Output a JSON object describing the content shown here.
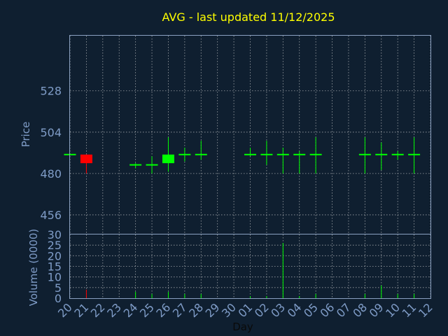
{
  "chart_data": {
    "type": "candlestick",
    "title": "AVG - last updated 11/12/2025",
    "xlabel": "Day",
    "ylabel_price": "Price",
    "ylabel_volume": "Volume (0000)",
    "categories": [
      "20",
      "21",
      "22",
      "23",
      "24",
      "25",
      "26",
      "27",
      "28",
      "29",
      "30",
      "01",
      "02",
      "03",
      "04",
      "05",
      "06",
      "07",
      "08",
      "09",
      "10",
      "11",
      "12"
    ],
    "price_yticks": [
      456,
      480,
      504,
      528
    ],
    "price_ylim": [
      445,
      560
    ],
    "volume_yticks": [
      0,
      5,
      10,
      15,
      20,
      25,
      30
    ],
    "volume_ylim": [
      0,
      30
    ],
    "colors": {
      "up": "#00ff00",
      "down": "#ff0000",
      "background": "#0f1f30",
      "title": "#ffff00",
      "axis": "#7f9cc7"
    },
    "candles": [
      {
        "day": "20",
        "open": 491,
        "high": 491,
        "low": 491,
        "close": 491,
        "volume": 0
      },
      {
        "day": "21",
        "open": 491,
        "high": 491,
        "low": 480,
        "close": 486,
        "volume": 4
      },
      {
        "day": "24",
        "open": 485,
        "high": 486,
        "low": 483,
        "close": 485,
        "volume": 3
      },
      {
        "day": "25",
        "open": 485,
        "high": 490,
        "low": 480,
        "close": 485,
        "volume": 2
      },
      {
        "day": "26",
        "open": 486,
        "high": 501,
        "low": 481,
        "close": 491,
        "volume": 3
      },
      {
        "day": "27",
        "open": 491,
        "high": 495,
        "low": 487,
        "close": 491,
        "volume": 2
      },
      {
        "day": "28",
        "open": 491,
        "high": 499,
        "low": 488,
        "close": 491,
        "volume": 2
      },
      {
        "day": "01",
        "open": 491,
        "high": 495,
        "low": 490,
        "close": 491,
        "volume": 1
      },
      {
        "day": "02",
        "open": 491,
        "high": 499,
        "low": 485,
        "close": 491,
        "volume": 1
      },
      {
        "day": "03",
        "open": 491,
        "high": 495,
        "low": 480,
        "close": 491,
        "volume": 26
      },
      {
        "day": "04",
        "open": 491,
        "high": 493,
        "low": 480,
        "close": 491,
        "volume": 1
      },
      {
        "day": "05",
        "open": 491,
        "high": 501,
        "low": 480,
        "close": 491,
        "volume": 2
      },
      {
        "day": "08",
        "open": 491,
        "high": 501,
        "low": 480,
        "close": 491,
        "volume": 2
      },
      {
        "day": "09",
        "open": 491,
        "high": 498,
        "low": 482,
        "close": 491,
        "volume": 6
      },
      {
        "day": "10",
        "open": 491,
        "high": 493,
        "low": 488,
        "close": 491,
        "volume": 2
      },
      {
        "day": "11",
        "open": 491,
        "high": 501,
        "low": 480,
        "close": 491,
        "volume": 2
      }
    ]
  }
}
